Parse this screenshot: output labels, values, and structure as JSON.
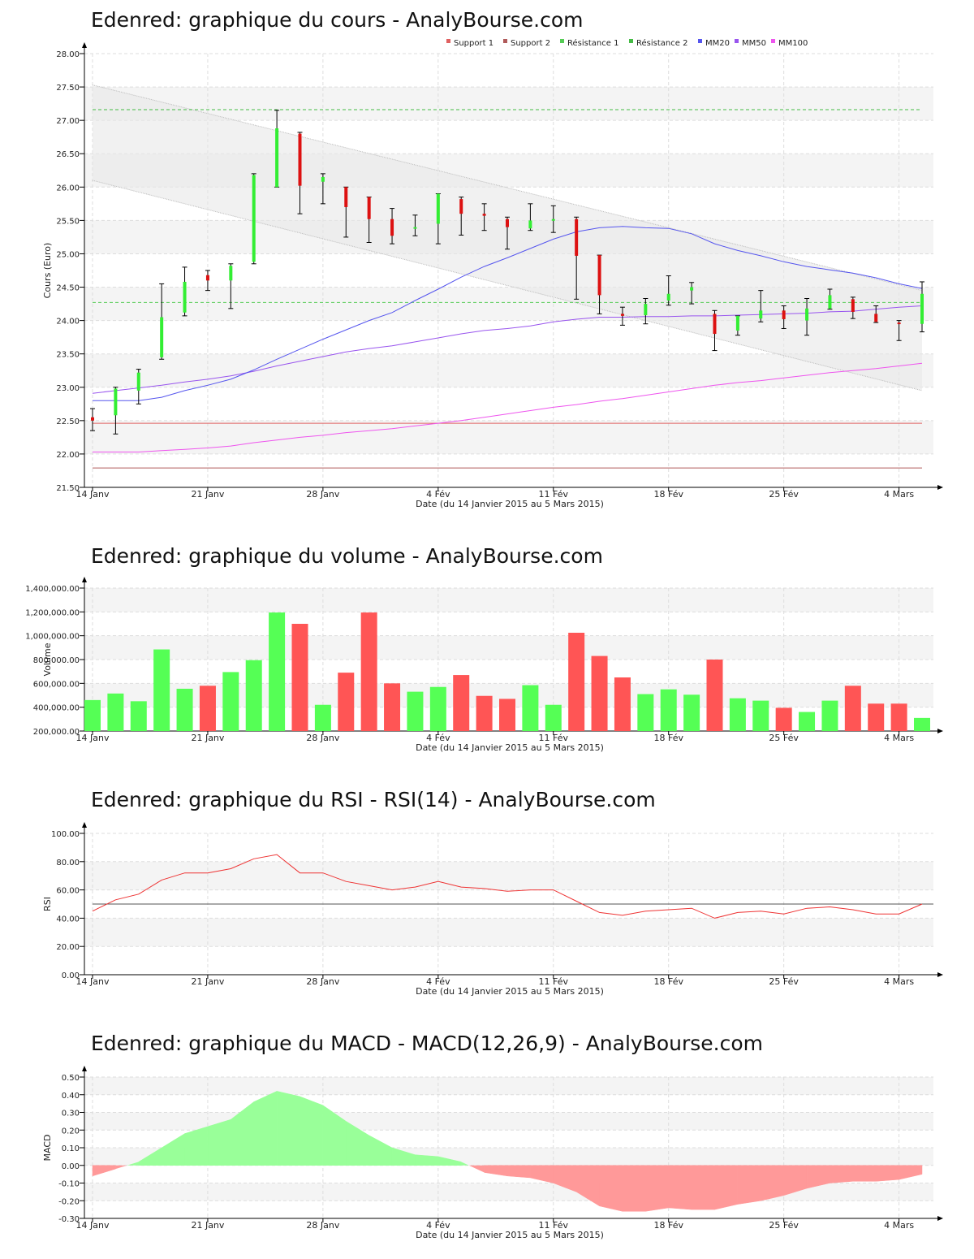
{
  "colors": {
    "up": "#55ff55",
    "down": "#ff5555",
    "up_candle": "#33ee33",
    "down_candle": "#dd1111",
    "support1": "#e06060",
    "support2": "#b05a5a",
    "resistance1": "#55cc55",
    "resistance2": "#44bb44",
    "mm20": "#5555ee",
    "mm50": "#9955ee",
    "mm100": "#ee55ee",
    "rsi": "#ee3333",
    "macd_pos": "#99ff99",
    "macd_neg": "#ff9999",
    "grid": "#dddddd",
    "band": "#f4f4f4"
  },
  "x_axis": {
    "label": "Date (du 14 Janvier 2015 au 5 Mars 2015)",
    "ticks": [
      {
        "i": 0,
        "label": "14 Janv"
      },
      {
        "i": 5,
        "label": "21 Janv"
      },
      {
        "i": 10,
        "label": "28 Janv"
      },
      {
        "i": 15,
        "label": "4 Fév"
      },
      {
        "i": 20,
        "label": "11 Fév"
      },
      {
        "i": 25,
        "label": "18 Fév"
      },
      {
        "i": 30,
        "label": "25 Fév"
      },
      {
        "i": 35,
        "label": "4 Mars"
      }
    ]
  },
  "panels": {
    "price": {
      "title": "Edenred: graphique du cours - AnalyBourse.com"
    },
    "volume": {
      "title": "Edenred: graphique du volume - AnalyBourse.com"
    },
    "rsi": {
      "title": "Edenred: graphique du RSI - RSI(14) - AnalyBourse.com"
    },
    "macd": {
      "title": "Edenred: graphique du MACD - MACD(12,26,9) - AnalyBourse.com"
    }
  },
  "chart_data": [
    {
      "type": "candlestick",
      "title": "Edenred: graphique du cours - AnalyBourse.com",
      "xlabel": "Date (du 14 Janvier 2015 au 5 Mars 2015)",
      "ylabel": "Cours (Euro)",
      "ylim": [
        21.5,
        28.0
      ],
      "y_ticks": [
        "21.50",
        "22.00",
        "22.50",
        "23.00",
        "23.50",
        "24.00",
        "24.50",
        "25.00",
        "25.50",
        "26.00",
        "26.50",
        "27.00",
        "27.50",
        "28.00"
      ],
      "legend": [
        "Support 1",
        "Support 2",
        "Résistance 1",
        "Résistance 2",
        "MM20",
        "MM50",
        "MM100"
      ],
      "legend_position": "top-right",
      "candles": [
        {
          "o": 22.55,
          "c": 22.5,
          "h": 22.68,
          "l": 22.35
        },
        {
          "o": 22.58,
          "c": 22.98,
          "h": 23.0,
          "l": 22.3
        },
        {
          "o": 22.95,
          "c": 23.22,
          "h": 23.27,
          "l": 22.75
        },
        {
          "o": 23.45,
          "c": 24.05,
          "h": 24.55,
          "l": 23.42
        },
        {
          "o": 24.12,
          "c": 24.58,
          "h": 24.8,
          "l": 24.07
        },
        {
          "o": 24.68,
          "c": 24.6,
          "h": 24.75,
          "l": 24.45
        },
        {
          "o": 24.6,
          "c": 24.82,
          "h": 24.85,
          "l": 24.18
        },
        {
          "o": 24.88,
          "c": 26.18,
          "h": 26.2,
          "l": 24.85
        },
        {
          "o": 26.0,
          "c": 26.88,
          "h": 27.15,
          "l": 26.0
        },
        {
          "o": 26.8,
          "c": 26.02,
          "h": 26.82,
          "l": 25.6
        },
        {
          "o": 26.08,
          "c": 26.15,
          "h": 26.2,
          "l": 25.75
        },
        {
          "o": 26.0,
          "c": 25.7,
          "h": 26.0,
          "l": 25.25
        },
        {
          "o": 25.85,
          "c": 25.52,
          "h": 25.85,
          "l": 25.17
        },
        {
          "o": 25.52,
          "c": 25.27,
          "h": 25.68,
          "l": 25.15
        },
        {
          "o": 25.38,
          "c": 25.4,
          "h": 25.58,
          "l": 25.27
        },
        {
          "o": 25.45,
          "c": 25.9,
          "h": 25.9,
          "l": 25.15
        },
        {
          "o": 25.82,
          "c": 25.6,
          "h": 25.85,
          "l": 25.28
        },
        {
          "o": 25.6,
          "c": 25.57,
          "h": 25.75,
          "l": 25.35
        },
        {
          "o": 25.52,
          "c": 25.4,
          "h": 25.55,
          "l": 25.07
        },
        {
          "o": 25.38,
          "c": 25.5,
          "h": 25.75,
          "l": 25.35
        },
        {
          "o": 25.5,
          "c": 25.52,
          "h": 25.72,
          "l": 25.32
        },
        {
          "o": 25.52,
          "c": 24.97,
          "h": 25.55,
          "l": 24.32
        },
        {
          "o": 24.98,
          "c": 24.38,
          "h": 24.98,
          "l": 24.1
        },
        {
          "o": 24.1,
          "c": 24.07,
          "h": 24.2,
          "l": 23.93
        },
        {
          "o": 24.08,
          "c": 24.25,
          "h": 24.33,
          "l": 23.95
        },
        {
          "o": 24.3,
          "c": 24.4,
          "h": 24.67,
          "l": 24.23
        },
        {
          "o": 24.45,
          "c": 24.5,
          "h": 24.57,
          "l": 24.25
        },
        {
          "o": 24.1,
          "c": 23.8,
          "h": 24.15,
          "l": 23.55
        },
        {
          "o": 23.85,
          "c": 24.07,
          "h": 24.07,
          "l": 23.78
        },
        {
          "o": 24.03,
          "c": 24.15,
          "h": 24.45,
          "l": 23.98
        },
        {
          "o": 24.15,
          "c": 24.02,
          "h": 24.22,
          "l": 23.88
        },
        {
          "o": 24.0,
          "c": 24.18,
          "h": 24.33,
          "l": 23.78
        },
        {
          "o": 24.18,
          "c": 24.38,
          "h": 24.47,
          "l": 24.17
        },
        {
          "o": 24.32,
          "c": 24.13,
          "h": 24.35,
          "l": 24.03
        },
        {
          "o": 24.1,
          "c": 23.98,
          "h": 24.22,
          "l": 23.97
        },
        {
          "o": 23.97,
          "c": 23.95,
          "h": 24.0,
          "l": 23.7
        },
        {
          "o": 23.95,
          "c": 24.4,
          "h": 24.58,
          "l": 23.83
        }
      ],
      "support1": 22.46,
      "support2": 21.79,
      "resistance1": 24.27,
      "resistance2": 27.16,
      "channel": {
        "upper": [
          27.53,
          24.45
        ],
        "lower": [
          26.1,
          22.95
        ]
      },
      "mm20": [
        22.8,
        22.8,
        22.8,
        22.85,
        22.95,
        23.03,
        23.12,
        23.26,
        23.42,
        23.57,
        23.72,
        23.86,
        24.0,
        24.12,
        24.3,
        24.47,
        24.65,
        24.81,
        24.94,
        25.08,
        25.22,
        25.33,
        25.39,
        25.41,
        25.39,
        25.38,
        25.3,
        25.15,
        25.05,
        24.97,
        24.88,
        24.81,
        24.76,
        24.71,
        24.64,
        24.55,
        24.48
      ],
      "mm50": [
        22.91,
        22.95,
        22.99,
        23.03,
        23.08,
        23.12,
        23.17,
        23.24,
        23.32,
        23.39,
        23.46,
        23.53,
        23.58,
        23.62,
        23.68,
        23.74,
        23.8,
        23.85,
        23.88,
        23.92,
        23.98,
        24.02,
        24.05,
        24.05,
        24.06,
        24.06,
        24.07,
        24.07,
        24.08,
        24.09,
        24.1,
        24.11,
        24.13,
        24.14,
        24.17,
        24.2,
        24.22
      ],
      "mm100": [
        22.03,
        22.03,
        22.03,
        22.05,
        22.07,
        22.09,
        22.12,
        22.17,
        22.21,
        22.25,
        22.28,
        22.32,
        22.35,
        22.38,
        22.42,
        22.46,
        22.5,
        22.55,
        22.6,
        22.65,
        22.7,
        22.74,
        22.79,
        22.83,
        22.88,
        22.93,
        22.98,
        23.03,
        23.07,
        23.1,
        23.14,
        23.18,
        23.22,
        23.25,
        23.28,
        23.32,
        23.36
      ]
    },
    {
      "type": "bar",
      "title": "Edenred: graphique du volume - AnalyBourse.com",
      "xlabel": "Date (du 14 Janvier 2015 au 5 Mars 2015)",
      "ylabel": "Volume",
      "ylim": [
        200000,
        1400000
      ],
      "y_ticks": [
        "200,000.00",
        "400,000.00",
        "600,000.00",
        "800,000.00",
        "1,000,000.00",
        "1,200,000.00",
        "1,400,000.00"
      ],
      "values": [
        460000,
        515000,
        450000,
        885000,
        555000,
        580000,
        695000,
        795000,
        1195000,
        1100000,
        420000,
        690000,
        1195000,
        600000,
        530000,
        570000,
        670000,
        495000,
        470000,
        585000,
        420000,
        1025000,
        830000,
        650000,
        510000,
        550000,
        505000,
        800000,
        475000,
        455000,
        395000,
        360000,
        455000,
        580000,
        430000,
        430000,
        310000
      ],
      "up": [
        true,
        true,
        true,
        true,
        true,
        false,
        true,
        true,
        true,
        false,
        true,
        false,
        false,
        false,
        true,
        true,
        false,
        false,
        false,
        true,
        true,
        false,
        false,
        false,
        true,
        true,
        true,
        false,
        true,
        true,
        false,
        true,
        true,
        false,
        false,
        false,
        true
      ]
    },
    {
      "type": "line",
      "title": "Edenred: graphique du RSI - RSI(14) - AnalyBourse.com",
      "xlabel": "Date (du 14 Janvier 2015 au 5 Mars 2015)",
      "ylabel": "RSI",
      "ylim": [
        0,
        100
      ],
      "y_ticks": [
        "0.00",
        "20.00",
        "40.00",
        "60.00",
        "80.00",
        "100.00"
      ],
      "reference": 50,
      "values": [
        45,
        53,
        57,
        67,
        72,
        72,
        75,
        82,
        85,
        72,
        72,
        66,
        63,
        60,
        62,
        66,
        62,
        61,
        59,
        60,
        60,
        52,
        44,
        42,
        45,
        46,
        47,
        40,
        44,
        45,
        43,
        47,
        48,
        46,
        43,
        43,
        50
      ]
    },
    {
      "type": "area",
      "title": "Edenred: graphique du MACD - MACD(12,26,9) - AnalyBourse.com",
      "xlabel": "Date (du 14 Janvier 2015 au 5 Mars 2015)",
      "ylabel": "MACD",
      "ylim": [
        -0.3,
        0.5
      ],
      "y_ticks": [
        "-0.30",
        "-0.20",
        "-0.10",
        "0.00",
        "0.10",
        "0.20",
        "0.30",
        "0.40",
        "0.50"
      ],
      "values": [
        -0.06,
        -0.02,
        0.02,
        0.1,
        0.18,
        0.22,
        0.26,
        0.36,
        0.42,
        0.39,
        0.34,
        0.25,
        0.17,
        0.1,
        0.06,
        0.05,
        0.02,
        -0.04,
        -0.06,
        -0.07,
        -0.1,
        -0.15,
        -0.23,
        -0.26,
        -0.26,
        -0.24,
        -0.25,
        -0.25,
        -0.22,
        -0.2,
        -0.17,
        -0.13,
        -0.1,
        -0.09,
        -0.09,
        -0.08,
        -0.05
      ]
    }
  ]
}
